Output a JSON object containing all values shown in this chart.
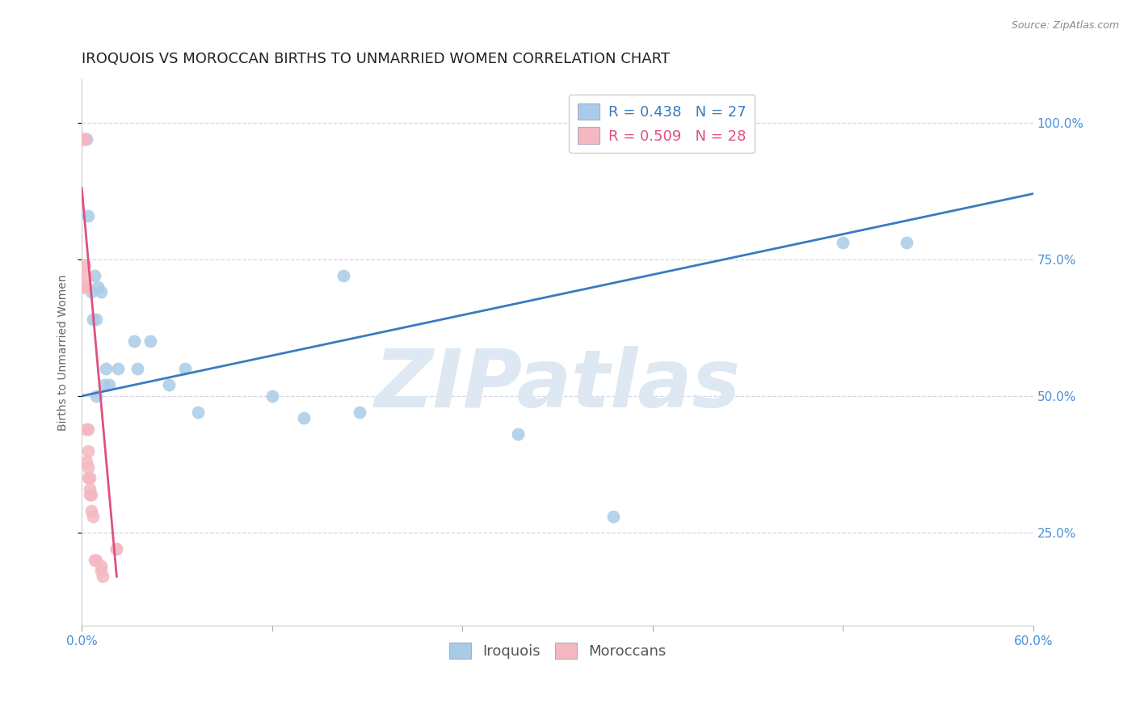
{
  "title": "IROQUOIS VS MOROCCAN BIRTHS TO UNMARRIED WOMEN CORRELATION CHART",
  "source": "Source: ZipAtlas.com",
  "ylabel": "Births to Unmarried Women",
  "yticks_labels": [
    "100.0%",
    "75.0%",
    "50.0%",
    "25.0%"
  ],
  "ytick_vals": [
    1.0,
    0.75,
    0.5,
    0.25
  ],
  "xlim": [
    0.0,
    0.6
  ],
  "ylim": [
    0.08,
    1.08
  ],
  "watermark_text": "ZIPatlas",
  "legend_r1_text": "R = 0.438   N = 27",
  "legend_r2_text": "R = 0.509   N = 28",
  "iroquois_scatter_color": "#a8cce8",
  "moroccan_scatter_color": "#f4b8c0",
  "iroquois_line_color": "#3a7bbf",
  "moroccan_line_color": "#e05080",
  "background_color": "#ffffff",
  "title_color": "#222222",
  "source_color": "#888888",
  "tick_color": "#4a90d9",
  "ylabel_color": "#666666",
  "legend_label_iq_color": "#3a7bbf",
  "legend_label_mo_color": "#e05080",
  "iroquois_x": [
    0.003,
    0.004,
    0.006,
    0.007,
    0.008,
    0.009,
    0.009,
    0.01,
    0.012,
    0.014,
    0.015,
    0.017,
    0.023,
    0.033,
    0.035,
    0.043,
    0.055,
    0.065,
    0.073,
    0.12,
    0.14,
    0.165,
    0.175,
    0.275,
    0.335,
    0.48,
    0.52
  ],
  "iroquois_y": [
    0.97,
    0.83,
    0.69,
    0.64,
    0.72,
    0.5,
    0.64,
    0.7,
    0.69,
    0.52,
    0.55,
    0.52,
    0.55,
    0.6,
    0.55,
    0.6,
    0.52,
    0.55,
    0.47,
    0.5,
    0.46,
    0.72,
    0.47,
    0.43,
    0.28,
    0.78,
    0.78
  ],
  "moroccan_x": [
    0.001,
    0.001,
    0.001,
    0.001,
    0.002,
    0.002,
    0.002,
    0.003,
    0.003,
    0.003,
    0.003,
    0.004,
    0.004,
    0.004,
    0.004,
    0.005,
    0.005,
    0.005,
    0.006,
    0.006,
    0.007,
    0.008,
    0.009,
    0.012,
    0.012,
    0.013,
    0.022,
    0.022
  ],
  "moroccan_y": [
    0.97,
    0.97,
    0.7,
    0.7,
    0.97,
    0.74,
    0.7,
    0.72,
    0.7,
    0.44,
    0.38,
    0.44,
    0.4,
    0.37,
    0.35,
    0.35,
    0.33,
    0.32,
    0.32,
    0.29,
    0.28,
    0.2,
    0.2,
    0.19,
    0.18,
    0.17,
    0.22,
    0.22
  ],
  "iroquois_line_x": [
    0.0,
    0.6
  ],
  "iroquois_line_y": [
    0.5,
    0.87
  ],
  "moroccan_line_x": [
    0.0,
    0.022
  ],
  "moroccan_line_y": [
    0.88,
    0.17
  ],
  "title_fontsize": 13,
  "axis_label_fontsize": 10,
  "tick_fontsize": 11,
  "legend_fontsize": 13,
  "source_fontsize": 9,
  "watermark_fontsize": 72
}
